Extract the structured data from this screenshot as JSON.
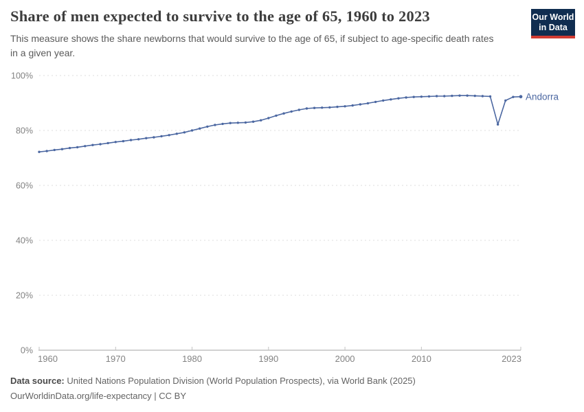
{
  "header": {
    "title": "Share of men expected to survive to the age of 65, 1960 to 2023",
    "subtitle": "This measure shows the share newborns that would survive to the age of 65, if subject to age-specific death rates in a given year.",
    "logo": {
      "line1": "Our World",
      "line2": "in Data"
    }
  },
  "chart_data": {
    "type": "line",
    "title": "Share of men expected to survive to the age of 65, 1960 to 2023",
    "xlabel": "",
    "ylabel": "",
    "xlim": [
      1960,
      2023
    ],
    "ylim": [
      0,
      100
    ],
    "x_ticks": [
      1960,
      1970,
      1980,
      1990,
      2000,
      2010,
      2023
    ],
    "y_ticks": [
      0,
      20,
      40,
      60,
      80,
      100
    ],
    "y_tick_suffix": "%",
    "grid": "horizontal-dashed",
    "legend": "end-of-line-label",
    "series": [
      {
        "name": "Andorra",
        "color": "#4b67a1",
        "years": [
          1960,
          1961,
          1962,
          1963,
          1964,
          1965,
          1966,
          1967,
          1968,
          1969,
          1970,
          1971,
          1972,
          1973,
          1974,
          1975,
          1976,
          1977,
          1978,
          1979,
          1980,
          1981,
          1982,
          1983,
          1984,
          1985,
          1986,
          1987,
          1988,
          1989,
          1990,
          1991,
          1992,
          1993,
          1994,
          1995,
          1996,
          1997,
          1998,
          1999,
          2000,
          2001,
          2002,
          2003,
          2004,
          2005,
          2006,
          2007,
          2008,
          2009,
          2010,
          2011,
          2012,
          2013,
          2014,
          2015,
          2016,
          2017,
          2018,
          2019,
          2020,
          2021,
          2022,
          2023
        ],
        "values": [
          72.2,
          72.5,
          72.9,
          73.2,
          73.6,
          73.9,
          74.3,
          74.7,
          75.0,
          75.4,
          75.8,
          76.1,
          76.5,
          76.8,
          77.2,
          77.5,
          77.9,
          78.3,
          78.8,
          79.3,
          80.0,
          80.7,
          81.4,
          82.0,
          82.4,
          82.7,
          82.8,
          82.9,
          83.2,
          83.7,
          84.5,
          85.4,
          86.2,
          86.9,
          87.5,
          88.0,
          88.2,
          88.3,
          88.4,
          88.6,
          88.8,
          89.1,
          89.5,
          89.9,
          90.4,
          90.9,
          91.3,
          91.7,
          92.0,
          92.2,
          92.3,
          92.4,
          92.5,
          92.5,
          92.6,
          92.7,
          92.7,
          92.6,
          92.5,
          92.4,
          82.2,
          90.9,
          92.2,
          92.3
        ]
      }
    ]
  },
  "footer": {
    "data_source_label": "Data source:",
    "data_source_text": "United Nations Population Division (World Population Prospects), via World Bank (2025)",
    "attribution": "OurWorldinData.org/life-expectancy | CC BY"
  },
  "colors": {
    "series_line": "#4b67a1",
    "logo_background": "#102d50",
    "logo_bar": "#d13b32",
    "gridline": "#dcdcdc",
    "axis_line": "#a3a3a3",
    "tick_label": "#828282"
  }
}
